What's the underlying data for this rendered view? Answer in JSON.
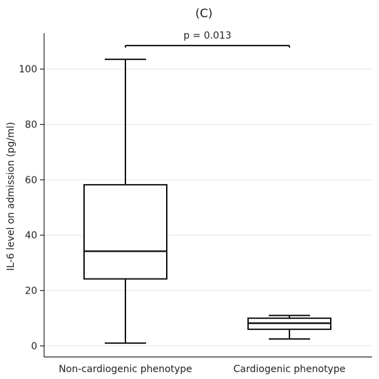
{
  "chart_data": {
    "type": "box",
    "title": "(C)",
    "xlabel": "",
    "ylabel": "IL-6 level on admission (pg/ml)",
    "ylim": [
      -4,
      113
    ],
    "yticks": [
      "0",
      "20",
      "40",
      "60",
      "80",
      "100"
    ],
    "grid": true,
    "legend": "none",
    "categories": [
      "Non-cardiogenic phenotype",
      "Cardiogenic phenotype"
    ],
    "boxes": [
      {
        "category": "Non-cardiogenic phenotype",
        "whisker_low": 1,
        "q1": 24.2,
        "median": 34.2,
        "q3": 58.2,
        "whisker_high": 103.5
      },
      {
        "category": "Cardiogenic phenotype",
        "whisker_low": 2.5,
        "q1": 6,
        "median": 8.2,
        "q3": 10,
        "whisker_high": 11
      }
    ],
    "annotation": {
      "text": "p = 0.013",
      "y": 108.5,
      "from": "Non-cardiogenic phenotype",
      "to": "Cardiogenic phenotype"
    }
  }
}
